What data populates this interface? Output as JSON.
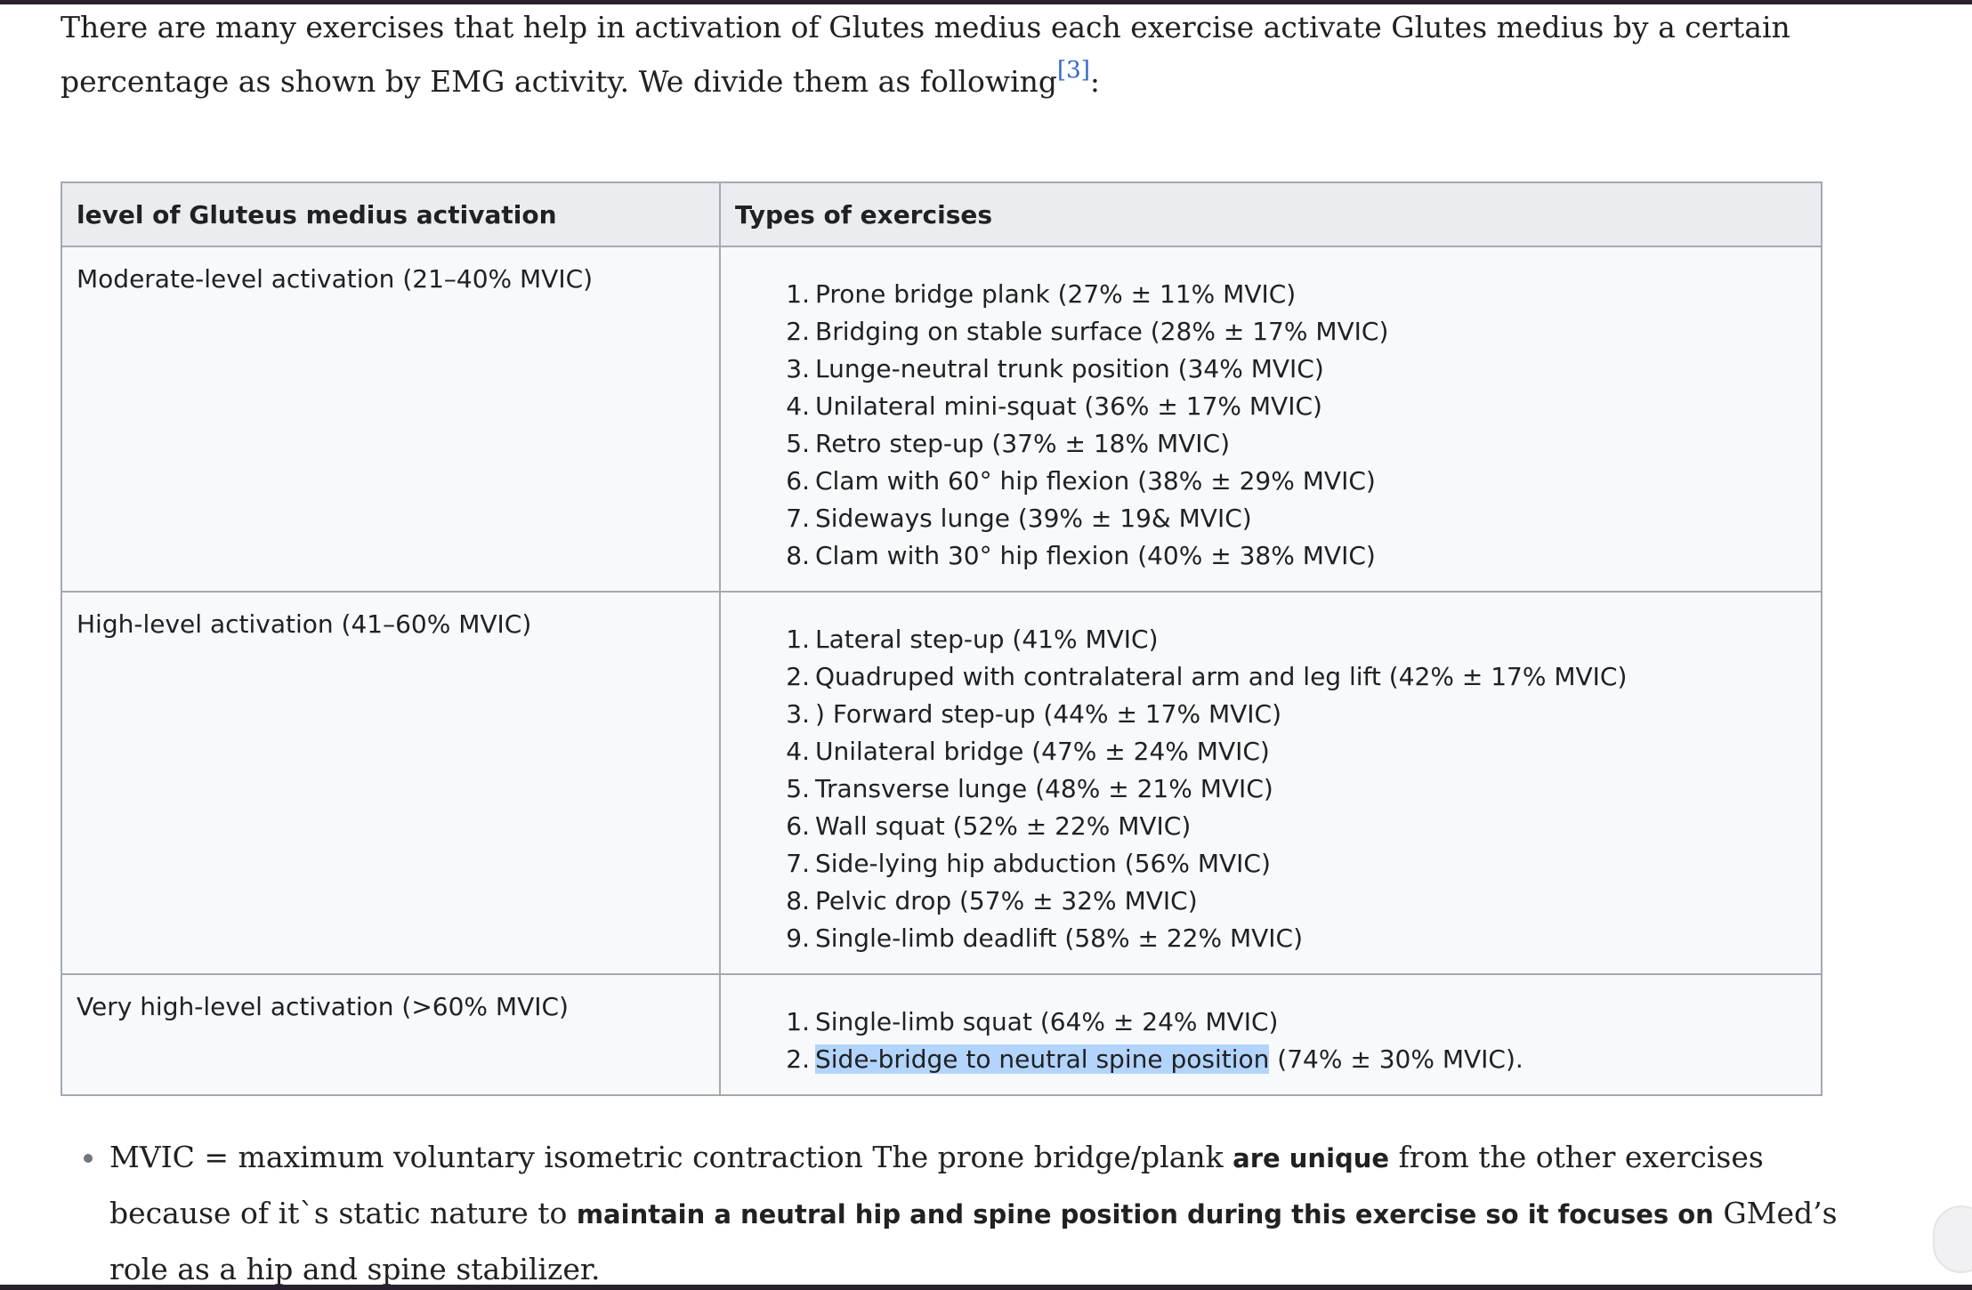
{
  "intro": {
    "text": "There are many exercises that help in activation of Glutes medius each exercise activate Glutes medius by a certain percentage as shown by EMG activity. We divide them as following",
    "ref": "[3]",
    "colon": ":"
  },
  "table": {
    "headers": [
      "level of Gluteus medius activation",
      "Types of exercises"
    ],
    "rows": [
      {
        "level": "Moderate-level activation (21–40% MVIC)",
        "exercises": [
          "Prone bridge plank (27% ± 11% MVIC)",
          "Bridging on stable surface (28% ± 17% MVIC)",
          "Lunge-neutral trunk position (34% MVIC)",
          "Unilateral mini-squat (36% ± 17% MVIC)",
          "Retro step-up (37% ± 18% MVIC)",
          "Clam with 60° hip flexion (38% ± 29% MVIC)",
          "Sideways lunge (39% ± 19& MVIC)",
          "Clam with 30° hip flexion (40% ± 38% MVIC)"
        ]
      },
      {
        "level": "High-level activation (41–60% MVIC)",
        "exercises": [
          "Lateral step-up (41% MVIC)",
          "Quadruped with contralateral arm and leg lift (42% ± 17% MVIC)",
          ") Forward step-up (44% ± 17% MVIC)",
          "Unilateral bridge (47% ± 24% MVIC)",
          "Transverse lunge (48% ± 21% MVIC)",
          "Wall squat (52% ± 22% MVIC)",
          "Side-lying hip abduction (56% MVIC)",
          "Pelvic drop (57% ± 32% MVIC)",
          "Single-limb deadlift (58% ± 22% MVIC)"
        ]
      },
      {
        "level": "Very high-level activation (>60% MVIC)",
        "exercises": [
          "Single-limb squat (64% ± 24% MVIC)"
        ],
        "last_item": {
          "highlighted": "Side-bridge to neutral spine position",
          "rest": " (74% ± 30% MVIC)."
        }
      }
    ]
  },
  "note": {
    "part1": "MVIC = maximum voluntary isometric contraction The prone bridge/plank ",
    "bold1": "are unique",
    "part2": " from the other exercises because of it`s static nature to ",
    "bold2": "maintain a neutral hip and spine position during this exercise so it focuses on",
    "part3": " GMed’s role as a hip and spine stabilizer."
  },
  "colors": {
    "link": "#3366cc",
    "header_bg": "#eaecf0",
    "cell_bg": "#f8f9fa",
    "border": "#a2a9b1",
    "selection": "#b3d4fc"
  }
}
